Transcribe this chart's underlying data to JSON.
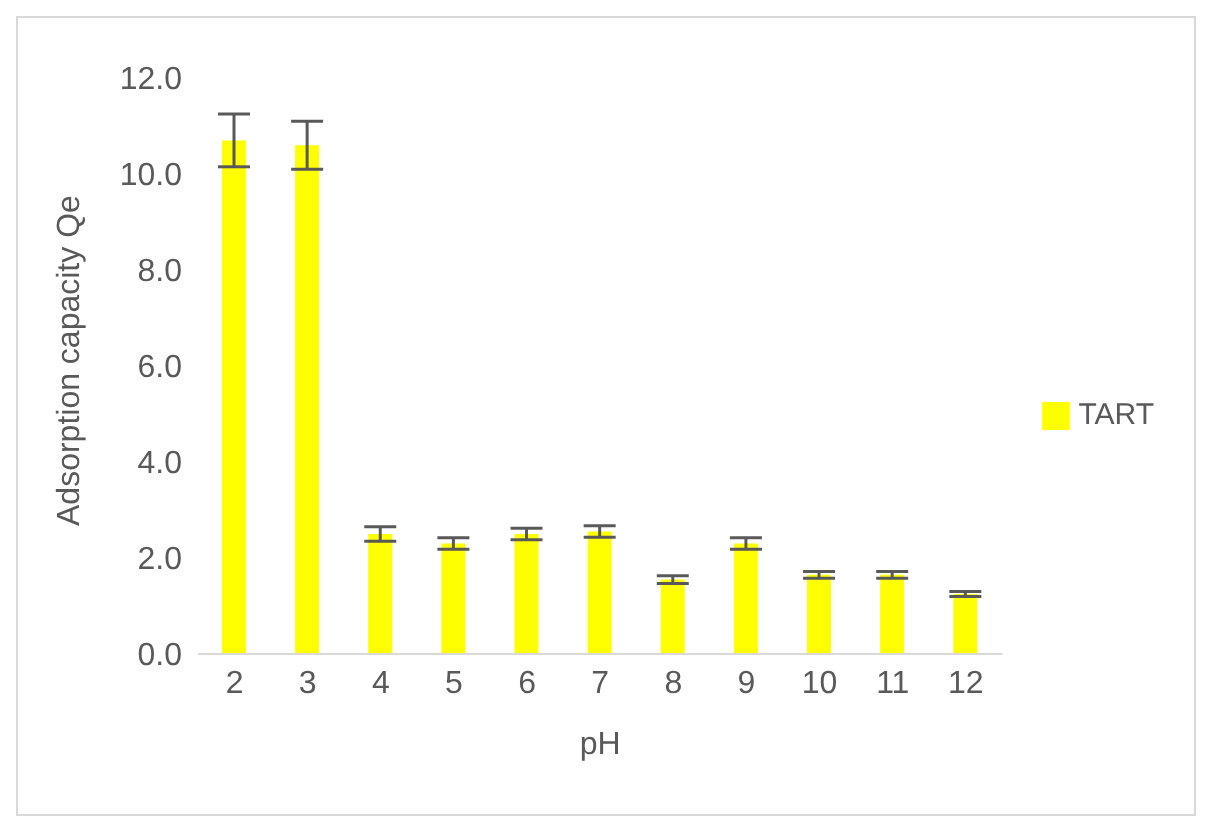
{
  "chart_data": {
    "type": "bar",
    "xlabel": "pH",
    "ylabel": "Adsorption capacity Qe",
    "categories": [
      "2",
      "3",
      "4",
      "5",
      "6",
      "7",
      "8",
      "9",
      "10",
      "11",
      "12"
    ],
    "series": [
      {
        "name": "TART",
        "color": "#ffff00",
        "values": [
          10.7,
          10.6,
          2.5,
          2.3,
          2.5,
          2.55,
          1.55,
          2.3,
          1.65,
          1.65,
          1.25
        ],
        "errors": [
          0.55,
          0.5,
          0.15,
          0.12,
          0.12,
          0.12,
          0.08,
          0.12,
          0.07,
          0.07,
          0.05
        ]
      }
    ],
    "ylim": [
      0,
      12
    ],
    "yticks": [
      {
        "value": 0,
        "label": "0.0"
      },
      {
        "value": 2,
        "label": "2.0"
      },
      {
        "value": 4,
        "label": "4.0"
      },
      {
        "value": 6,
        "label": "6.0"
      },
      {
        "value": 8,
        "label": "8.0"
      },
      {
        "value": 10,
        "label": "10.0"
      },
      {
        "value": 12,
        "label": "12.0"
      }
    ],
    "grid": false,
    "legend": "right"
  }
}
